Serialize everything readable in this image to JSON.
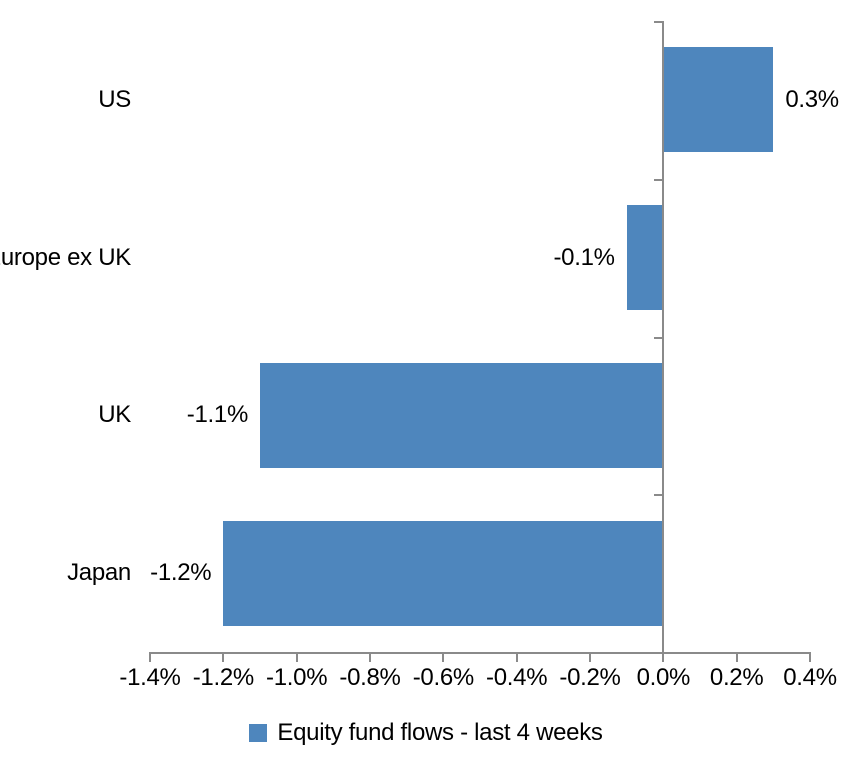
{
  "chart_data": {
    "type": "bar",
    "orientation": "horizontal",
    "title": "",
    "categories": [
      "US",
      "Europe ex UK",
      "UK",
      "Japan"
    ],
    "series": [
      {
        "name": "Equity fund flows - last 4 weeks",
        "values": [
          0.3,
          -0.1,
          -1.1,
          -1.2
        ],
        "value_labels": [
          "0.3%",
          "-0.1%",
          "-1.1%",
          "-1.2%"
        ]
      }
    ],
    "xlabel": "",
    "ylabel": "",
    "xlim": [
      -1.4,
      0.4
    ],
    "x_tick_step": 0.2,
    "x_tick_labels": [
      "-1.4%",
      "-1.2%",
      "-1.0%",
      "-0.8%",
      "-0.6%",
      "-0.4%",
      "-0.2%",
      "0.0%",
      "0.2%",
      "0.4%"
    ],
    "grid": false,
    "legend_position": "bottom",
    "data_labels": "outside-end",
    "bar_color": "#4e86bd",
    "axis_color": "#8a8a8a",
    "text_color": "#000000"
  },
  "legend": {
    "label": "Equity fund flows - last 4 weeks"
  }
}
